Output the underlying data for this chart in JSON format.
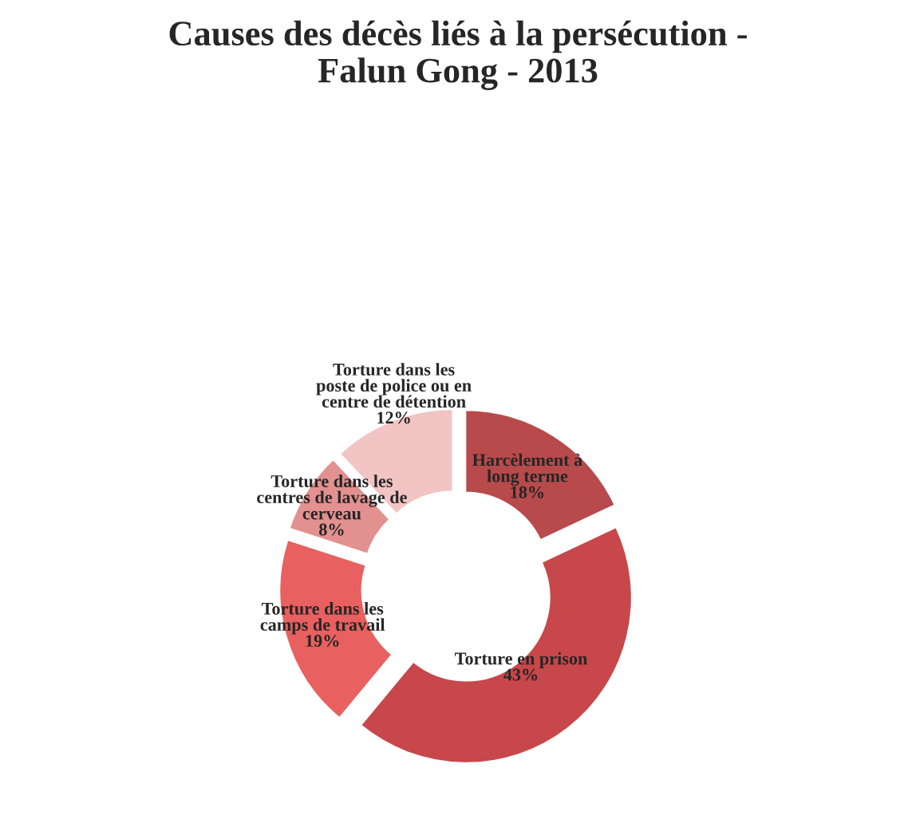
{
  "chart_data": {
    "type": "donut",
    "title": "Causes des décès liés à la persécution -\nFalun Gong - 2013",
    "categories": [
      "Harcèlement à\nlong terme",
      "Torture en prison",
      "Torture dans les\ncamps de travail",
      "Torture dans les\ncentres de lavage de\ncerveau",
      "Torture dans les\nposte de police ou en\ncentre de détention"
    ],
    "values": [
      18,
      43,
      19,
      8,
      12
    ],
    "value_labels": [
      "18%",
      "43%",
      "19%",
      "8%",
      "12%"
    ],
    "colors": [
      "#b84a4c",
      "#c7474a",
      "#e8605f",
      "#e39090",
      "#f2c4c4"
    ]
  }
}
